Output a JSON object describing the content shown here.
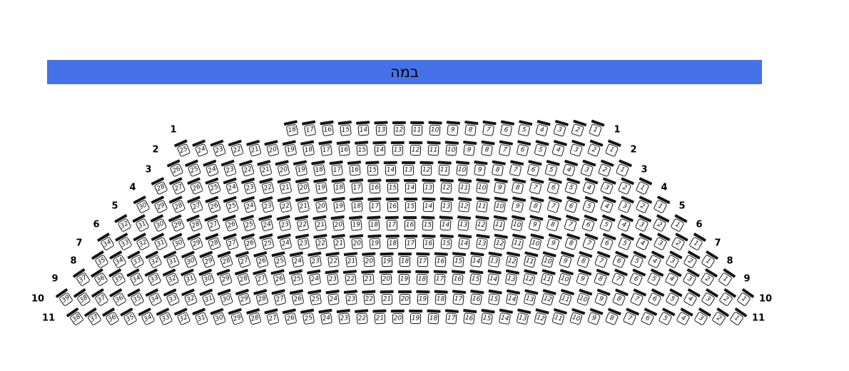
{
  "stage": {
    "label": "במה",
    "color": "#4573e7"
  },
  "seat_style": {
    "fill": "#ffffff",
    "border": "#161616",
    "back": "#161616"
  },
  "rows": [
    {
      "label": "1",
      "seats": [
        18,
        17,
        16,
        15,
        14,
        13,
        12,
        11,
        10,
        9,
        8,
        7,
        6,
        5,
        4,
        3,
        2,
        1
      ]
    },
    {
      "label": "2",
      "seats": [
        25,
        24,
        23,
        22,
        21,
        20,
        19,
        18,
        17,
        16,
        15,
        14,
        13,
        12,
        11,
        10,
        9,
        8,
        7,
        6,
        5,
        4,
        3,
        2,
        1
      ]
    },
    {
      "label": "3",
      "seats": [
        26,
        25,
        24,
        23,
        22,
        21,
        20,
        19,
        18,
        17,
        16,
        15,
        14,
        13,
        12,
        11,
        10,
        9,
        8,
        7,
        6,
        5,
        4,
        3,
        2,
        1
      ]
    },
    {
      "label": "4",
      "seats": [
        28,
        27,
        26,
        25,
        24,
        23,
        22,
        21,
        20,
        19,
        18,
        17,
        16,
        15,
        14,
        13,
        12,
        11,
        10,
        9,
        8,
        7,
        6,
        5,
        4,
        3,
        2,
        1
      ]
    },
    {
      "label": "5",
      "seats": [
        30,
        29,
        28,
        27,
        26,
        25,
        24,
        23,
        22,
        21,
        20,
        19,
        18,
        17,
        16,
        15,
        14,
        13,
        12,
        11,
        10,
        9,
        8,
        7,
        6,
        5,
        4,
        3,
        2,
        1
      ]
    },
    {
      "label": "6",
      "seats": [
        32,
        31,
        30,
        29,
        28,
        27,
        26,
        25,
        24,
        23,
        22,
        21,
        20,
        19,
        18,
        17,
        16,
        15,
        14,
        13,
        12,
        11,
        10,
        9,
        8,
        7,
        6,
        5,
        4,
        3,
        2,
        1
      ]
    },
    {
      "label": "7",
      "seats": [
        34,
        33,
        32,
        31,
        30,
        29,
        28,
        27,
        26,
        25,
        24,
        23,
        22,
        21,
        20,
        19,
        18,
        17,
        16,
        15,
        14,
        13,
        12,
        11,
        10,
        9,
        8,
        7,
        6,
        5,
        4,
        3,
        2,
        1
      ]
    },
    {
      "label": "8",
      "seats": [
        35,
        34,
        33,
        32,
        31,
        30,
        29,
        28,
        27,
        26,
        25,
        24,
        23,
        22,
        21,
        20,
        19,
        18,
        17,
        16,
        15,
        14,
        13,
        12,
        11,
        10,
        9,
        8,
        7,
        6,
        5,
        4,
        3,
        2,
        1
      ]
    },
    {
      "label": "9",
      "seats": [
        37,
        36,
        35,
        34,
        33,
        32,
        31,
        30,
        29,
        28,
        27,
        26,
        25,
        24,
        23,
        22,
        21,
        20,
        19,
        18,
        17,
        16,
        15,
        14,
        13,
        12,
        11,
        10,
        9,
        8,
        7,
        6,
        5,
        4,
        3,
        2,
        1
      ]
    },
    {
      "label": "10",
      "seats": [
        39,
        38,
        37,
        36,
        35,
        34,
        33,
        32,
        31,
        30,
        29,
        28,
        27,
        26,
        25,
        24,
        23,
        22,
        21,
        20,
        19,
        18,
        17,
        16,
        15,
        14,
        13,
        12,
        11,
        10,
        9,
        8,
        7,
        6,
        5,
        4,
        3,
        2,
        1
      ]
    },
    {
      "label": "11",
      "seats": [
        38,
        37,
        36,
        35,
        34,
        33,
        32,
        31,
        30,
        29,
        28,
        27,
        26,
        25,
        24,
        23,
        22,
        21,
        20,
        19,
        18,
        17,
        16,
        15,
        14,
        13,
        12,
        11,
        10,
        9,
        8,
        7,
        6,
        5,
        4,
        3,
        2,
        1
      ]
    }
  ]
}
